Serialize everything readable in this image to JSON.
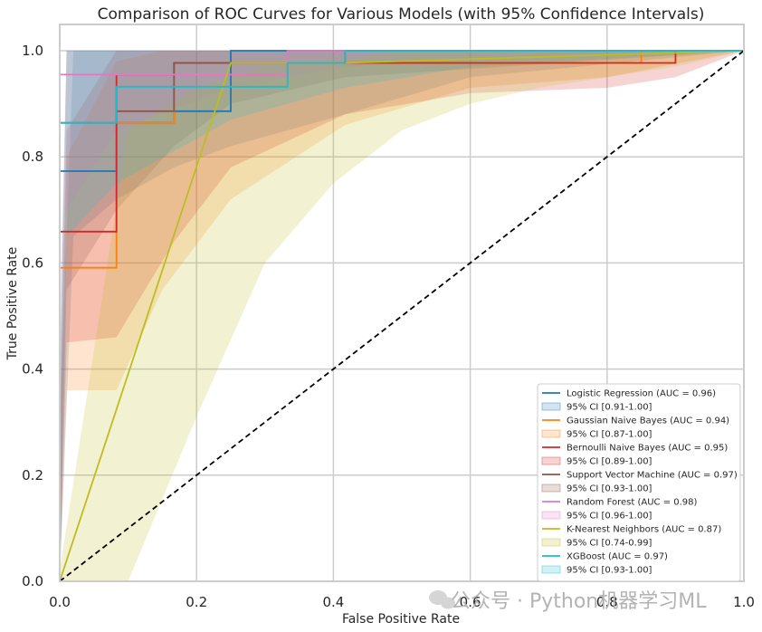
{
  "chart_data": {
    "type": "line",
    "title": "Comparison of ROC Curves for Various Models (with 95% Confidence Intervals)",
    "xlabel": "False Positive Rate",
    "ylabel": "True Positive Rate",
    "xlim": [
      0,
      1
    ],
    "ylim": [
      0,
      1.05
    ],
    "xticks": [
      "0.0",
      "0.2",
      "0.4",
      "0.6",
      "0.8",
      "1.0"
    ],
    "yticks": [
      "0.0",
      "0.2",
      "0.4",
      "0.6",
      "0.8",
      "1.0"
    ],
    "grid": true,
    "legend_position": "lower-right",
    "diagonal": {
      "x": [
        0,
        1
      ],
      "y": [
        0,
        1
      ],
      "color": "#000000",
      "style": "dashed"
    },
    "series": [
      {
        "name": "Logistic Regression (AUC = 0.96)",
        "ci_label": "95% CI [0.91-1.00]",
        "color": "#1f77b4",
        "x": [
          0,
          0,
          0.083,
          0.083,
          0.167,
          0.167,
          0.25,
          0.25,
          1
        ],
        "y": [
          0,
          0.773,
          0.773,
          0.864,
          0.864,
          0.886,
          0.886,
          1.0,
          1.0
        ],
        "ci_x": [
          0,
          0.02,
          0.083,
          0.167,
          0.25,
          0.417,
          0.6,
          1
        ],
        "ci_lower": [
          0,
          0.65,
          0.72,
          0.78,
          0.82,
          0.88,
          0.95,
          1.0
        ],
        "ci_upper": [
          0.3,
          1.0,
          1.0,
          1.0,
          1.0,
          1.0,
          1.0,
          1.0
        ]
      },
      {
        "name": "Gaussian Naive Bayes (AUC = 0.94)",
        "ci_label": "95% CI [0.87-1.00]",
        "color": "#ff7f0e",
        "x": [
          0,
          0,
          0.083,
          0.083,
          0.167,
          0.167,
          0.333,
          0.333,
          0.85,
          0.85,
          1
        ],
        "y": [
          0,
          0.591,
          0.591,
          0.864,
          0.864,
          0.955,
          0.955,
          0.977,
          0.977,
          1.0,
          1.0
        ],
        "ci_x": [
          0,
          0.01,
          0.083,
          0.15,
          0.25,
          0.417,
          0.6,
          0.8,
          1
        ],
        "ci_lower": [
          0,
          0.36,
          0.36,
          0.55,
          0.72,
          0.86,
          0.93,
          0.95,
          1.0
        ],
        "ci_upper": [
          0.2,
          0.8,
          0.98,
          1.0,
          1.0,
          1.0,
          1.0,
          1.0,
          1.0
        ]
      },
      {
        "name": "Bernoulli Naive Bayes (AUC = 0.95)",
        "ci_label": "95% CI [0.89-1.00]",
        "color": "#d62728",
        "x": [
          0,
          0,
          0.083,
          0.083,
          0.167,
          0.167,
          0.417,
          0.417,
          0.75,
          0.75,
          0.9,
          0.9,
          1
        ],
        "y": [
          0,
          0.659,
          0.659,
          0.955,
          0.955,
          0.977,
          0.977,
          0.977,
          0.977,
          0.977,
          0.977,
          1.0,
          1.0
        ],
        "ci_x": [
          0,
          0.01,
          0.083,
          0.167,
          0.25,
          0.417,
          0.6,
          0.8,
          0.9,
          1
        ],
        "ci_lower": [
          0,
          0.45,
          0.46,
          0.64,
          0.78,
          0.88,
          0.92,
          0.93,
          0.95,
          1.0
        ],
        "ci_upper": [
          0.3,
          0.85,
          1.0,
          1.0,
          1.0,
          1.0,
          1.0,
          1.0,
          1.0,
          1.0
        ]
      },
      {
        "name": "Support Vector Machine (AUC = 0.97)",
        "ci_label": "95% CI [0.93-1.00]",
        "color": "#8c564b",
        "x": [
          0,
          0,
          0.083,
          0.083,
          0.167,
          0.167,
          0.417,
          0.417,
          1
        ],
        "y": [
          0,
          0.864,
          0.864,
          0.886,
          0.886,
          0.977,
          0.977,
          1.0,
          1.0
        ],
        "ci_x": [
          0,
          0.01,
          0.083,
          0.167,
          0.25,
          0.417,
          1
        ],
        "ci_lower": [
          0,
          0.55,
          0.7,
          0.82,
          0.9,
          0.95,
          1.0
        ],
        "ci_upper": [
          0.4,
          1.0,
          1.0,
          1.0,
          1.0,
          1.0,
          1.0
        ]
      },
      {
        "name": "Random Forest (AUC = 0.98)",
        "ci_label": "95% CI [0.96-1.00]",
        "color": "#e377c2",
        "x": [
          0,
          0,
          0.333,
          0.333,
          1
        ],
        "y": [
          0,
          0.955,
          0.955,
          1.0,
          1.0
        ],
        "ci_x": [
          0,
          0.01,
          0.083,
          0.25,
          0.417,
          1
        ],
        "ci_lower": [
          0,
          0.7,
          0.85,
          0.93,
          0.97,
          1.0
        ],
        "ci_upper": [
          0.5,
          1.0,
          1.0,
          1.0,
          1.0,
          1.0
        ]
      },
      {
        "name": "K-Nearest Neighbors (AUC = 0.87)",
        "ci_label": "95% CI [0.74-0.99]",
        "color": "#bcbd22",
        "x": [
          0,
          0.25,
          0.417,
          1
        ],
        "y": [
          0,
          0.977,
          0.977,
          1.0
        ],
        "ci_x": [
          0,
          0.1,
          0.2,
          0.3,
          0.4,
          0.5,
          0.6,
          0.7,
          0.8,
          0.9,
          1
        ],
        "ci_lower": [
          0,
          0,
          0.31,
          0.6,
          0.75,
          0.85,
          0.9,
          0.93,
          0.95,
          0.97,
          1.0
        ],
        "ci_upper": [
          0.02,
          0.85,
          0.93,
          0.97,
          0.98,
          1.0,
          1.0,
          1.0,
          1.0,
          1.0,
          1.0
        ]
      },
      {
        "name": "XGBoost (AUC = 0.97)",
        "ci_label": "95% CI [0.93-1.00]",
        "color": "#17becf",
        "x": [
          0,
          0,
          0.083,
          0.083,
          0.333,
          0.333,
          0.417,
          0.417,
          1
        ],
        "y": [
          0,
          0.864,
          0.864,
          0.932,
          0.932,
          0.977,
          0.977,
          1.0,
          1.0
        ],
        "ci_x": [
          0,
          0.01,
          0.083,
          0.25,
          0.417,
          0.6,
          1
        ],
        "ci_lower": [
          0,
          0.65,
          0.75,
          0.87,
          0.93,
          0.97,
          1.0
        ],
        "ci_upper": [
          0.35,
          1.0,
          1.0,
          1.0,
          1.0,
          1.0,
          1.0
        ]
      }
    ]
  },
  "watermark": "公众号 · Python机器学习ML"
}
